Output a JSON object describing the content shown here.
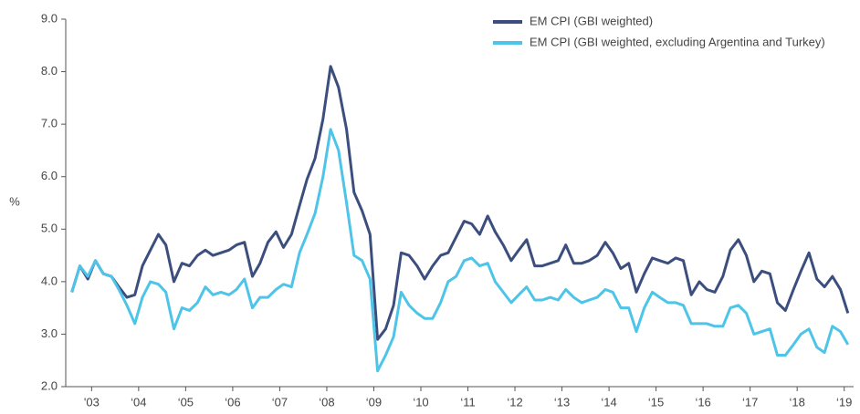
{
  "chart_data": {
    "type": "line",
    "ylabel": "%",
    "x": [
      2002.58,
      2002.75,
      2002.92,
      2003.08,
      2003.25,
      2003.42,
      2003.58,
      2003.75,
      2003.92,
      2004.08,
      2004.25,
      2004.42,
      2004.58,
      2004.75,
      2004.92,
      2005.08,
      2005.25,
      2005.42,
      2005.58,
      2005.75,
      2005.92,
      2006.08,
      2006.25,
      2006.42,
      2006.58,
      2006.75,
      2006.92,
      2007.08,
      2007.25,
      2007.42,
      2007.58,
      2007.75,
      2007.92,
      2008.08,
      2008.25,
      2008.42,
      2008.58,
      2008.75,
      2008.92,
      2009.08,
      2009.25,
      2009.42,
      2009.58,
      2009.75,
      2009.92,
      2010.08,
      2010.25,
      2010.42,
      2010.58,
      2010.75,
      2010.92,
      2011.08,
      2011.25,
      2011.42,
      2011.58,
      2011.75,
      2011.92,
      2012.08,
      2012.25,
      2012.42,
      2012.58,
      2012.75,
      2012.92,
      2013.08,
      2013.25,
      2013.42,
      2013.58,
      2013.75,
      2013.92,
      2014.08,
      2014.25,
      2014.42,
      2014.58,
      2014.75,
      2014.92,
      2015.08,
      2015.25,
      2015.42,
      2015.58,
      2015.75,
      2015.92,
      2016.08,
      2016.25,
      2016.42,
      2016.58,
      2016.75,
      2016.92,
      2017.08,
      2017.25,
      2017.42,
      2017.58,
      2017.75,
      2017.92,
      2018.08,
      2018.25,
      2018.42,
      2018.58,
      2018.75,
      2018.92,
      2019.08
    ],
    "series": [
      {
        "name": "EM CPI (GBI weighted)",
        "color": "#3b4e7d",
        "values": [
          3.8,
          4.3,
          4.05,
          4.4,
          4.15,
          4.1,
          3.9,
          3.7,
          3.75,
          4.3,
          4.6,
          4.9,
          4.7,
          4.0,
          4.35,
          4.3,
          4.5,
          4.6,
          4.5,
          4.55,
          4.6,
          4.7,
          4.75,
          4.1,
          4.35,
          4.75,
          4.95,
          4.65,
          4.9,
          5.45,
          5.95,
          6.35,
          7.1,
          8.1,
          7.7,
          6.9,
          5.7,
          5.35,
          4.9,
          2.9,
          3.1,
          3.55,
          4.55,
          4.5,
          4.3,
          4.05,
          4.3,
          4.5,
          4.55,
          4.85,
          5.15,
          5.1,
          4.9,
          5.25,
          4.95,
          4.7,
          4.4,
          4.6,
          4.8,
          4.3,
          4.3,
          4.35,
          4.4,
          4.7,
          4.35,
          4.35,
          4.4,
          4.5,
          4.75,
          4.55,
          4.25,
          4.35,
          3.8,
          4.15,
          4.45,
          4.4,
          4.35,
          4.45,
          4.4,
          3.75,
          4.0,
          3.85,
          3.8,
          4.1,
          4.6,
          4.8,
          4.5,
          4.0,
          4.2,
          4.15,
          3.6,
          3.45,
          3.85,
          4.2,
          4.55,
          4.05,
          3.9,
          4.1,
          3.85,
          3.4
        ]
      },
      {
        "name": "EM CPI (GBI weighted, excluding Argentina and Turkey)",
        "color": "#4dc4e8",
        "values": [
          3.8,
          4.3,
          4.1,
          4.4,
          4.15,
          4.1,
          3.85,
          3.55,
          3.2,
          3.7,
          4.0,
          3.95,
          3.8,
          3.1,
          3.5,
          3.45,
          3.6,
          3.9,
          3.75,
          3.8,
          3.75,
          3.85,
          4.05,
          3.5,
          3.7,
          3.7,
          3.85,
          3.95,
          3.9,
          4.55,
          4.9,
          5.3,
          6.0,
          6.9,
          6.5,
          5.5,
          4.5,
          4.4,
          4.05,
          2.3,
          2.6,
          2.95,
          3.8,
          3.55,
          3.4,
          3.3,
          3.3,
          3.6,
          4.0,
          4.1,
          4.4,
          4.45,
          4.3,
          4.35,
          4.0,
          3.8,
          3.6,
          3.75,
          3.9,
          3.65,
          3.65,
          3.7,
          3.65,
          3.85,
          3.7,
          3.6,
          3.65,
          3.7,
          3.85,
          3.8,
          3.5,
          3.5,
          3.05,
          3.5,
          3.8,
          3.7,
          3.6,
          3.6,
          3.55,
          3.2,
          3.2,
          3.2,
          3.15,
          3.15,
          3.5,
          3.55,
          3.4,
          3.0,
          3.05,
          3.1,
          2.6,
          2.6,
          2.8,
          3.0,
          3.1,
          2.75,
          2.65,
          3.15,
          3.05,
          2.8
        ]
      }
    ],
    "xlim": [
      2002.45,
      2019.2
    ],
    "xticks": [
      {
        "value": 2003,
        "label": "'03"
      },
      {
        "value": 2004,
        "label": "‘04"
      },
      {
        "value": 2005,
        "label": "‘05"
      },
      {
        "value": 2006,
        "label": "‘06"
      },
      {
        "value": 2007,
        "label": "‘07"
      },
      {
        "value": 2008,
        "label": "‘08"
      },
      {
        "value": 2009,
        "label": "‘09"
      },
      {
        "value": 2010,
        "label": "‘10"
      },
      {
        "value": 2011,
        "label": "‘11"
      },
      {
        "value": 2012,
        "label": "‘12"
      },
      {
        "value": 2013,
        "label": "‘13"
      },
      {
        "value": 2014,
        "label": "‘14"
      },
      {
        "value": 2015,
        "label": "‘15"
      },
      {
        "value": 2016,
        "label": "‘16"
      },
      {
        "value": 2017,
        "label": "‘17"
      },
      {
        "value": 2018,
        "label": "‘18"
      },
      {
        "value": 2019,
        "label": "‘19"
      }
    ],
    "ylim": [
      2,
      9
    ],
    "yticks": [
      {
        "value": 2,
        "label": "2.0"
      },
      {
        "value": 3,
        "label": "3.0"
      },
      {
        "value": 4,
        "label": "4.0"
      },
      {
        "value": 5,
        "label": "5.0"
      },
      {
        "value": 6,
        "label": "6.0"
      },
      {
        "value": 7,
        "label": "7.0"
      },
      {
        "value": 8,
        "label": "8.0"
      },
      {
        "value": 9,
        "label": "9.0"
      }
    ],
    "grid": false,
    "legend": "top-right"
  }
}
